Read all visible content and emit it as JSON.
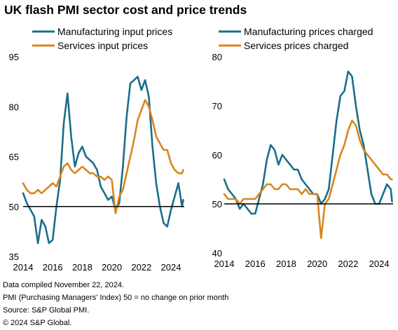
{
  "title": "UK flash PMI sector cost and price trends",
  "footnotes": [
    "Data compiled November 22, 2024.",
    "PMI (Purchasing Managers' Index) 50 = no change on prior month",
    "Source: S&P Global PMI.",
    "© 2024 S&P Global."
  ],
  "colors": {
    "manufacturing": "#1a6e8c",
    "services": "#d9851f",
    "reference_line": "#000000"
  },
  "chart_data": [
    {
      "type": "line",
      "title": "",
      "xlabel": "",
      "ylabel": "",
      "xlim": [
        2014,
        2024.9
      ],
      "ylim": [
        35,
        95
      ],
      "xticks": [
        2014,
        2016,
        2018,
        2020,
        2022,
        2024
      ],
      "yticks": [
        35,
        50,
        65,
        80,
        95
      ],
      "reference_line": 50,
      "legend_position": "top",
      "grid": false,
      "series": [
        {
          "name": "Manufacturing input prices",
          "color": "#1a6e8c",
          "x": [
            2014.0,
            2014.25,
            2014.5,
            2014.75,
            2015.0,
            2015.25,
            2015.5,
            2015.75,
            2016.0,
            2016.25,
            2016.5,
            2016.75,
            2017.0,
            2017.25,
            2017.5,
            2017.75,
            2018.0,
            2018.25,
            2018.5,
            2018.75,
            2019.0,
            2019.25,
            2019.5,
            2019.75,
            2020.0,
            2020.25,
            2020.5,
            2020.75,
            2021.0,
            2021.25,
            2021.5,
            2021.75,
            2022.0,
            2022.25,
            2022.5,
            2022.75,
            2023.0,
            2023.25,
            2023.5,
            2023.75,
            2024.0,
            2024.25,
            2024.5,
            2024.75,
            2024.83
          ],
          "values": [
            54,
            51,
            49,
            47,
            39,
            46,
            44,
            39,
            40,
            50,
            58,
            75,
            84,
            71,
            62,
            66,
            68,
            65,
            64,
            63,
            61,
            56,
            54,
            52,
            53,
            49,
            51,
            62,
            77,
            87,
            88,
            89,
            85,
            88,
            83,
            68,
            57,
            50,
            45,
            44,
            49,
            53,
            57,
            50,
            52
          ]
        },
        {
          "name": "Services input prices",
          "color": "#d9851f",
          "x": [
            2014.0,
            2014.25,
            2014.5,
            2014.75,
            2015.0,
            2015.25,
            2015.5,
            2015.75,
            2016.0,
            2016.25,
            2016.5,
            2016.75,
            2017.0,
            2017.25,
            2017.5,
            2017.75,
            2018.0,
            2018.25,
            2018.5,
            2018.75,
            2019.0,
            2019.25,
            2019.5,
            2019.75,
            2020.0,
            2020.25,
            2020.5,
            2020.75,
            2021.0,
            2021.25,
            2021.5,
            2021.75,
            2022.0,
            2022.25,
            2022.5,
            2022.75,
            2023.0,
            2023.25,
            2023.5,
            2023.75,
            2024.0,
            2024.25,
            2024.5,
            2024.75,
            2024.83
          ],
          "values": [
            57,
            55,
            54,
            54,
            55,
            54,
            55,
            56,
            57,
            56,
            59,
            62,
            63,
            61,
            60,
            61,
            62,
            61,
            60,
            60,
            59,
            59,
            58,
            59,
            58,
            48,
            53,
            55,
            60,
            65,
            70,
            76,
            79,
            82,
            80,
            76,
            71,
            69,
            67,
            67,
            63,
            61,
            60,
            60,
            61
          ]
        }
      ]
    },
    {
      "type": "line",
      "title": "",
      "xlabel": "",
      "ylabel": "",
      "xlim": [
        2014,
        2024.9
      ],
      "ylim": [
        40,
        80
      ],
      "xticks": [
        2014,
        2016,
        2018,
        2020,
        2022,
        2024
      ],
      "yticks": [
        40,
        50,
        60,
        70,
        80
      ],
      "reference_line": 50,
      "legend_position": "top",
      "grid": false,
      "series": [
        {
          "name": "Manufacturing prices charged",
          "color": "#1a6e8c",
          "x": [
            2014.0,
            2014.25,
            2014.5,
            2014.75,
            2015.0,
            2015.25,
            2015.5,
            2015.75,
            2016.0,
            2016.25,
            2016.5,
            2016.75,
            2017.0,
            2017.25,
            2017.5,
            2017.75,
            2018.0,
            2018.25,
            2018.5,
            2018.75,
            2019.0,
            2019.25,
            2019.5,
            2019.75,
            2020.0,
            2020.25,
            2020.5,
            2020.75,
            2021.0,
            2021.25,
            2021.5,
            2021.75,
            2022.0,
            2022.25,
            2022.5,
            2022.75,
            2023.0,
            2023.25,
            2023.5,
            2023.75,
            2024.0,
            2024.25,
            2024.5,
            2024.75,
            2024.83
          ],
          "values": [
            55,
            53,
            52,
            51,
            49,
            50,
            49,
            48,
            48,
            51,
            54,
            59,
            62,
            61,
            58,
            60,
            59,
            58,
            57,
            57,
            55,
            54,
            53,
            52,
            52,
            50,
            51,
            53,
            60,
            67,
            72,
            73,
            77,
            76,
            70,
            65,
            62,
            57,
            52,
            50,
            50,
            52,
            54,
            53,
            50.5
          ]
        },
        {
          "name": "Services prices charged",
          "color": "#d9851f",
          "x": [
            2014.0,
            2014.25,
            2014.5,
            2014.75,
            2015.0,
            2015.25,
            2015.5,
            2015.75,
            2016.0,
            2016.25,
            2016.5,
            2016.75,
            2017.0,
            2017.25,
            2017.5,
            2017.75,
            2018.0,
            2018.25,
            2018.5,
            2018.75,
            2019.0,
            2019.25,
            2019.5,
            2019.75,
            2020.0,
            2020.25,
            2020.5,
            2020.75,
            2021.0,
            2021.25,
            2021.5,
            2021.75,
            2022.0,
            2022.25,
            2022.5,
            2022.75,
            2023.0,
            2023.25,
            2023.5,
            2023.75,
            2024.0,
            2024.25,
            2024.5,
            2024.75,
            2024.83
          ],
          "values": [
            52,
            51,
            51,
            51,
            50,
            51,
            51,
            51,
            51,
            52,
            53,
            54,
            54,
            53,
            53,
            54,
            54,
            53,
            53,
            53,
            52,
            53,
            52,
            52,
            52,
            43,
            50,
            51,
            54,
            57,
            60,
            62,
            65,
            67,
            66,
            63,
            61,
            60,
            59,
            58,
            57,
            56,
            56,
            55,
            55
          ]
        }
      ]
    }
  ]
}
